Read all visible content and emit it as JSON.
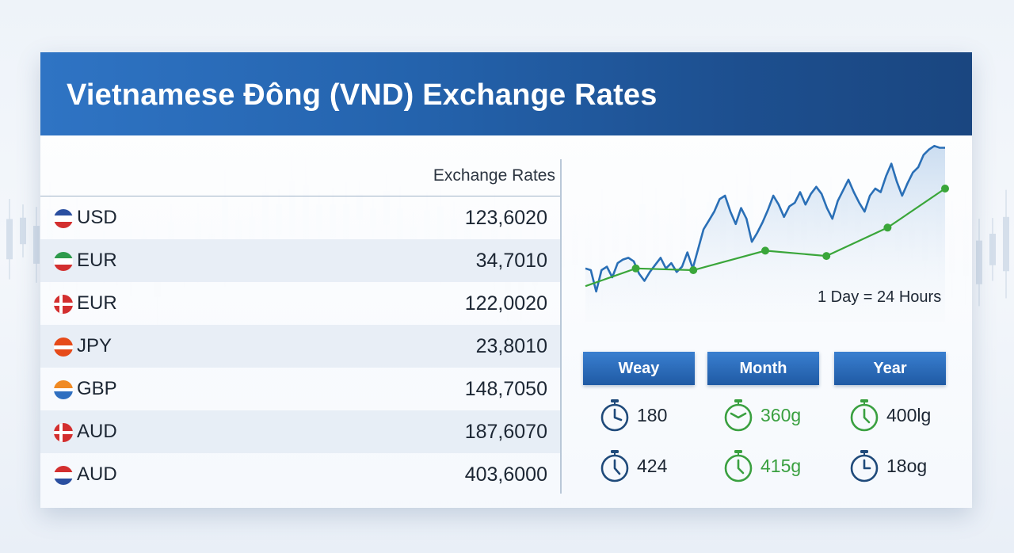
{
  "header": {
    "title": "Vietnamese Đông (VND) Exchange Rates"
  },
  "table": {
    "column_title": "Exchange Rates",
    "rows": [
      {
        "code": "USD",
        "rate": "123,6020",
        "flag": "flag-us-icon"
      },
      {
        "code": "EUR",
        "rate": "34,7010",
        "flag": "flag-it-icon"
      },
      {
        "code": "EUR",
        "rate": "122,0020",
        "flag": "flag-dk-icon"
      },
      {
        "code": "JPY",
        "rate": "23,8010",
        "flag": "flag-orange-icon"
      },
      {
        "code": "GBP",
        "rate": "148,7050",
        "flag": "flag-gb-icon"
      },
      {
        "code": "AUD",
        "rate": "187,6070",
        "flag": "flag-dk-icon"
      },
      {
        "code": "AUD",
        "rate": "403,6000",
        "flag": "flag-nl-icon"
      }
    ]
  },
  "chart_data": {
    "type": "line",
    "note": "1 Day = 24 Hours",
    "series": [
      {
        "color": "#2a6fb6",
        "values": [
          0.3,
          0.29,
          0.17,
          0.29,
          0.31,
          0.25,
          0.33,
          0.35,
          0.36,
          0.34,
          0.27,
          0.23,
          0.28,
          0.32,
          0.36,
          0.3,
          0.33,
          0.28,
          0.31,
          0.39,
          0.3,
          0.41,
          0.52,
          0.57,
          0.62,
          0.69,
          0.71,
          0.62,
          0.55,
          0.64,
          0.58,
          0.45,
          0.5,
          0.56,
          0.63,
          0.71,
          0.66,
          0.59,
          0.65,
          0.67,
          0.73,
          0.66,
          0.72,
          0.76,
          0.72,
          0.64,
          0.58,
          0.68,
          0.74,
          0.8,
          0.73,
          0.67,
          0.62,
          0.71,
          0.75,
          0.73,
          0.82,
          0.89,
          0.79,
          0.71,
          0.78,
          0.84,
          0.87,
          0.94,
          0.97,
          0.99,
          0.98,
          0.98
        ]
      },
      {
        "color": "#3aa63a",
        "x": [
          0,
          0.14,
          0.3,
          0.5,
          0.67,
          0.84,
          1.0
        ],
        "values": [
          0.2,
          0.3,
          0.29,
          0.4,
          0.37,
          0.53,
          0.75
        ],
        "markers": [
          0.14,
          0.3,
          0.5,
          0.67,
          0.84,
          1.0
        ]
      }
    ]
  },
  "periods": {
    "labels": [
      "Weay",
      "Month",
      "Year"
    ],
    "stats": [
      [
        {
          "value": "180",
          "color": "blue"
        },
        {
          "value": "424",
          "color": "blue"
        }
      ],
      [
        {
          "value": "360g",
          "color": "green"
        },
        {
          "value": "415g",
          "color": "green"
        }
      ],
      [
        {
          "value": "400lg",
          "color": "green"
        },
        {
          "value": "18og",
          "color": "blue"
        }
      ]
    ]
  },
  "colors": {
    "header_blue": "#2463ad",
    "button_blue": "#1f5aa4",
    "line_blue": "#2a6fb6",
    "line_green": "#3aa63a",
    "stat_green": "#3aa040"
  }
}
